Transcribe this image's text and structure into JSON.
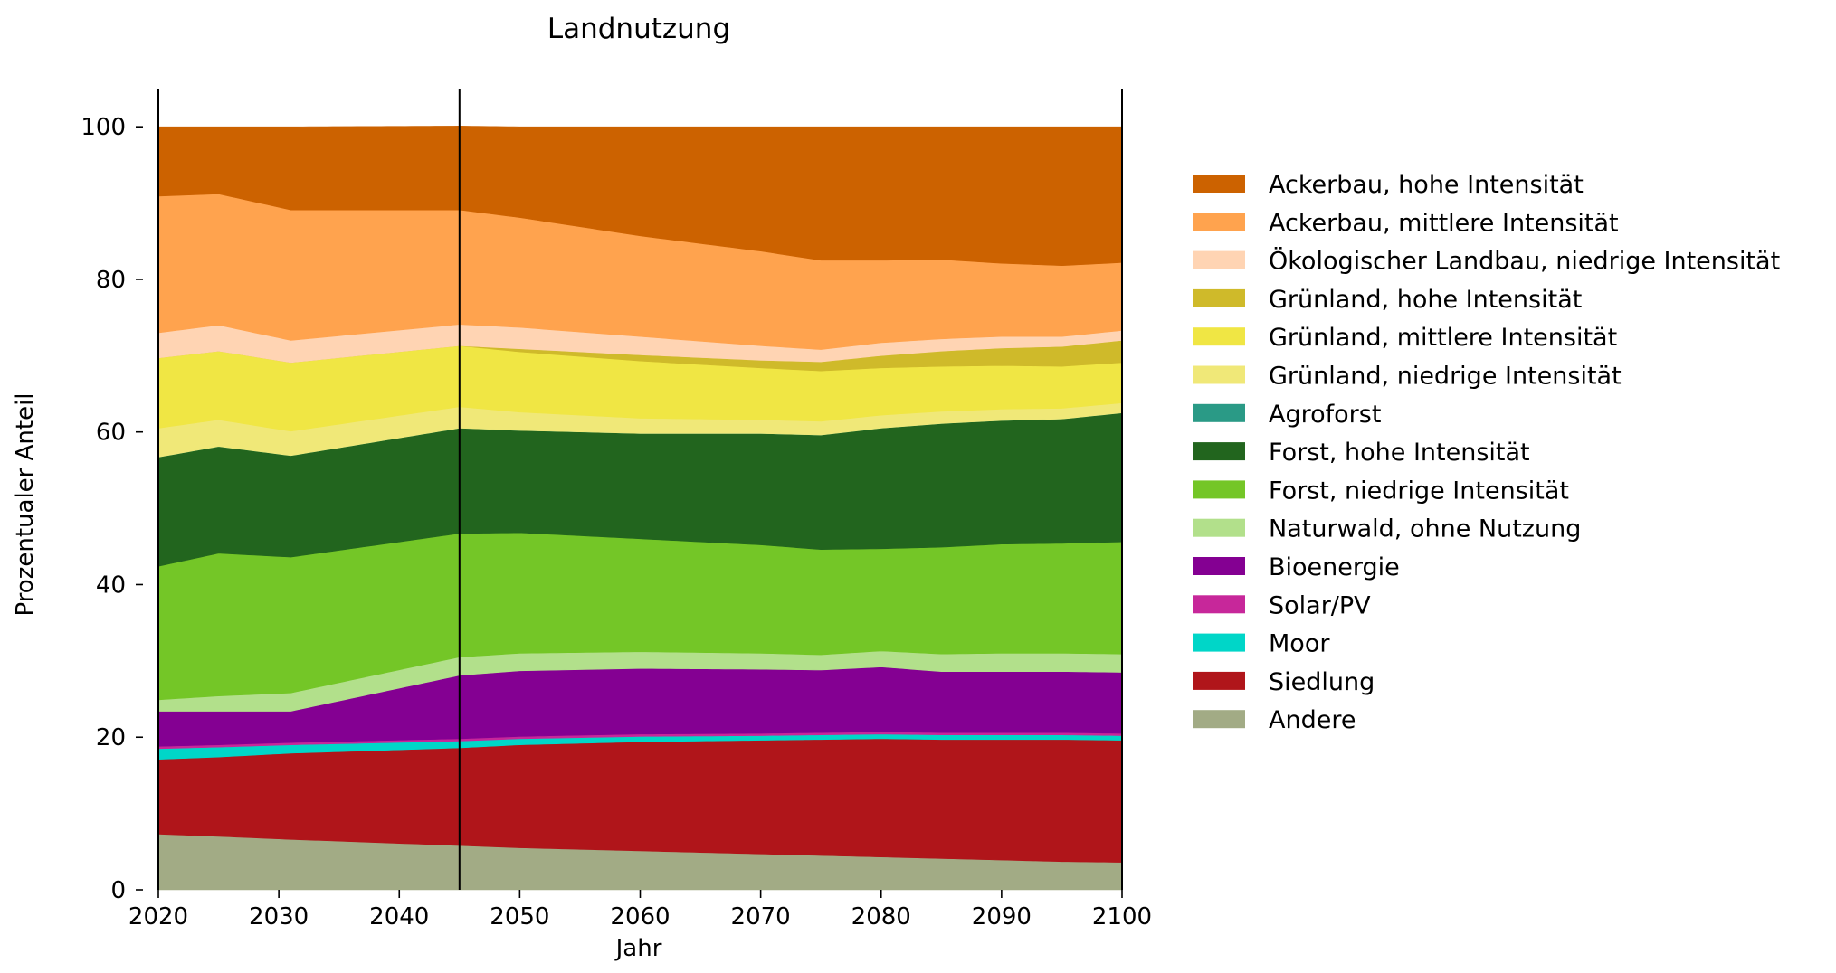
{
  "chart_data": {
    "type": "area",
    "title": "Landnutzung",
    "xlabel": "Jahr",
    "ylabel": "Prozentualer Anteil",
    "xlim": [
      2020,
      2100
    ],
    "ylim": [
      0,
      105
    ],
    "xticks": [
      "2020",
      "2030",
      "2040",
      "2050",
      "2060",
      "2070",
      "2080",
      "2090",
      "2100"
    ],
    "yticks": [
      "0",
      "20",
      "40",
      "60",
      "80",
      "100"
    ],
    "vlines": [
      2020,
      2045,
      2100
    ],
    "x": [
      2020,
      2025,
      2031,
      2045,
      2050,
      2060,
      2070,
      2075,
      2080,
      2085,
      2090,
      2095,
      2100
    ],
    "series": [
      {
        "name": "Andere",
        "color": "#a2ab85",
        "values": [
          7.3,
          7.0,
          6.6,
          5.8,
          5.5,
          5.1,
          4.7,
          4.5,
          4.3,
          4.1,
          3.9,
          3.7,
          3.6
        ]
      },
      {
        "name": "Siedlung",
        "color": "#b0151a",
        "values": [
          9.8,
          10.4,
          11.3,
          12.8,
          13.5,
          14.3,
          14.9,
          15.2,
          15.5,
          15.6,
          15.8,
          16.0,
          16.0
        ]
      },
      {
        "name": "Moor",
        "color": "#00d6c8",
        "values": [
          1.4,
          1.3,
          1.1,
          0.9,
          0.8,
          0.7,
          0.6,
          0.6,
          0.6,
          0.6,
          0.6,
          0.6,
          0.6
        ]
      },
      {
        "name": "Solar/PV",
        "color": "#c7279a",
        "values": [
          0.3,
          0.3,
          0.3,
          0.3,
          0.3,
          0.3,
          0.3,
          0.3,
          0.3,
          0.3,
          0.3,
          0.3,
          0.3
        ]
      },
      {
        "name": "Bioenergie",
        "color": "#840092",
        "values": [
          4.6,
          4.4,
          4.1,
          8.3,
          8.6,
          8.6,
          8.4,
          8.2,
          8.5,
          8.0,
          8.0,
          8.0,
          8.0
        ]
      },
      {
        "name": "Naturwald, ohne Nutzung",
        "color": "#b2e08b",
        "values": [
          1.5,
          2.0,
          2.4,
          2.4,
          2.3,
          2.2,
          2.1,
          2.0,
          2.1,
          2.3,
          2.4,
          2.4,
          2.4
        ]
      },
      {
        "name": "Forst, niedrige Intensität",
        "color": "#74c627",
        "values": [
          17.5,
          18.7,
          17.8,
          16.2,
          15.8,
          14.8,
          14.2,
          13.8,
          13.4,
          14.0,
          14.3,
          14.4,
          14.7
        ]
      },
      {
        "name": "Forst, hohe Intensität",
        "color": "#22651e",
        "values": [
          14.3,
          14.0,
          13.3,
          13.8,
          13.4,
          13.8,
          14.6,
          15.0,
          15.8,
          16.2,
          16.2,
          16.3,
          16.9
        ]
      },
      {
        "name": "Agroforst",
        "color": "#2a9a86",
        "values": [
          0.0,
          0.0,
          0.0,
          0.0,
          0.0,
          0.0,
          0.0,
          0.0,
          0.0,
          0.0,
          0.0,
          0.0,
          0.0
        ]
      },
      {
        "name": "Grünland, niedrige Intensität",
        "color": "#f0e878",
        "values": [
          3.8,
          3.5,
          3.2,
          2.8,
          2.4,
          2.0,
          1.8,
          1.8,
          1.7,
          1.6,
          1.5,
          1.4,
          1.3
        ]
      },
      {
        "name": "Grünland, mittlere Intensität",
        "color": "#f0e644",
        "values": [
          9.2,
          9.0,
          9.0,
          8.0,
          7.9,
          7.5,
          6.8,
          6.6,
          6.2,
          5.9,
          5.7,
          5.5,
          5.3
        ]
      },
      {
        "name": "Grünland, hohe Intensität",
        "color": "#cfba2a",
        "values": [
          0.0,
          0.0,
          0.0,
          0.0,
          0.4,
          0.8,
          1.0,
          1.2,
          1.6,
          2.0,
          2.3,
          2.6,
          2.9
        ]
      },
      {
        "name": "Ökologischer Landbau, niedrige Intensität",
        "color": "#ffd4b3",
        "values": [
          3.3,
          3.4,
          2.9,
          2.8,
          2.8,
          2.4,
          1.9,
          1.6,
          1.7,
          1.6,
          1.5,
          1.3,
          1.3
        ]
      },
      {
        "name": "Ackerbau, mittlere Intensität",
        "color": "#ffa34e",
        "values": [
          17.9,
          17.2,
          17.1,
          15.0,
          14.4,
          13.2,
          12.4,
          11.7,
          10.8,
          10.4,
          9.6,
          9.3,
          8.9
        ]
      },
      {
        "name": "Ackerbau, hohe Intensität",
        "color": "#cc6200",
        "values": [
          9.1,
          8.8,
          10.9,
          11.0,
          11.9,
          14.3,
          16.3,
          17.5,
          17.5,
          17.4,
          17.9,
          18.2,
          17.8
        ]
      }
    ]
  }
}
